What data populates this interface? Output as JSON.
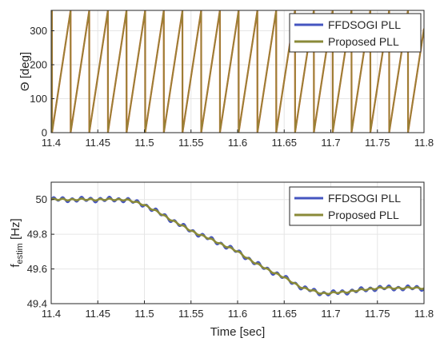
{
  "colors": {
    "series1": "#4555c0",
    "series2": "#8a8a38",
    "series1_top_lead": "#e0572a",
    "series2_top_lead": "#a86b2a",
    "grid": "#e6e6e6",
    "axis": "#262626"
  },
  "chart_data": [
    {
      "type": "line",
      "subplot": "top",
      "ylabel": "Θ [deg]",
      "xlim": [
        11.4,
        11.8
      ],
      "ylim": [
        0,
        360
      ],
      "x_ticks": [
        "11.4",
        "11.45",
        "11.5",
        "11.55",
        "11.6",
        "11.65",
        "11.7",
        "11.75",
        "11.8"
      ],
      "y_ticks": [
        "0",
        "100",
        "200",
        "300"
      ],
      "grid": true,
      "legend_position": "top-right",
      "description_free_series": [
        {
          "name": "FFDSOGI PLL",
          "kind": "sawtooth-phase",
          "start_freq_hz": 50.0,
          "end_freq_hz": 49.5,
          "phase0_deg": 345
        },
        {
          "name": "Proposed PLL",
          "kind": "sawtooth-phase",
          "start_freq_hz": 50.0,
          "end_freq_hz": 49.5,
          "phase0_deg": 345
        }
      ]
    },
    {
      "type": "line",
      "subplot": "bottom",
      "xlabel": "Time [sec]",
      "ylabel": "f_estim [Hz]",
      "ylabel_main": "f",
      "ylabel_sub": "estim",
      "ylabel_unit": " [Hz]",
      "xlim": [
        11.4,
        11.8
      ],
      "ylim": [
        49.4,
        50.1
      ],
      "x_ticks": [
        "11.4",
        "11.45",
        "11.5",
        "11.55",
        "11.6",
        "11.65",
        "11.7",
        "11.75",
        "11.8"
      ],
      "y_ticks": [
        "49.4",
        "49.6",
        "49.8",
        "50"
      ],
      "grid": true,
      "legend_position": "top-right",
      "series": [
        {
          "name": "FFDSOGI PLL",
          "x": [
            11.4,
            11.45,
            11.48,
            11.5,
            11.52,
            11.55,
            11.58,
            11.6,
            11.62,
            11.65,
            11.67,
            11.69,
            11.7,
            11.72,
            11.75,
            11.78,
            11.8
          ],
          "y": [
            50.0,
            50.0,
            50.0,
            49.97,
            49.91,
            49.82,
            49.75,
            49.7,
            49.63,
            49.55,
            49.49,
            49.46,
            49.46,
            49.47,
            49.49,
            49.49,
            49.49
          ],
          "ripple_amplitude": 0.012
        },
        {
          "name": "Proposed PLL",
          "x": [
            11.4,
            11.45,
            11.48,
            11.5,
            11.52,
            11.55,
            11.58,
            11.6,
            11.62,
            11.65,
            11.67,
            11.69,
            11.7,
            11.72,
            11.75,
            11.78,
            11.8
          ],
          "y": [
            50.0,
            50.0,
            50.0,
            49.97,
            49.91,
            49.82,
            49.75,
            49.7,
            49.63,
            49.55,
            49.49,
            49.46,
            49.46,
            49.47,
            49.49,
            49.49,
            49.49
          ],
          "ripple_amplitude": 0.004
        }
      ]
    }
  ]
}
